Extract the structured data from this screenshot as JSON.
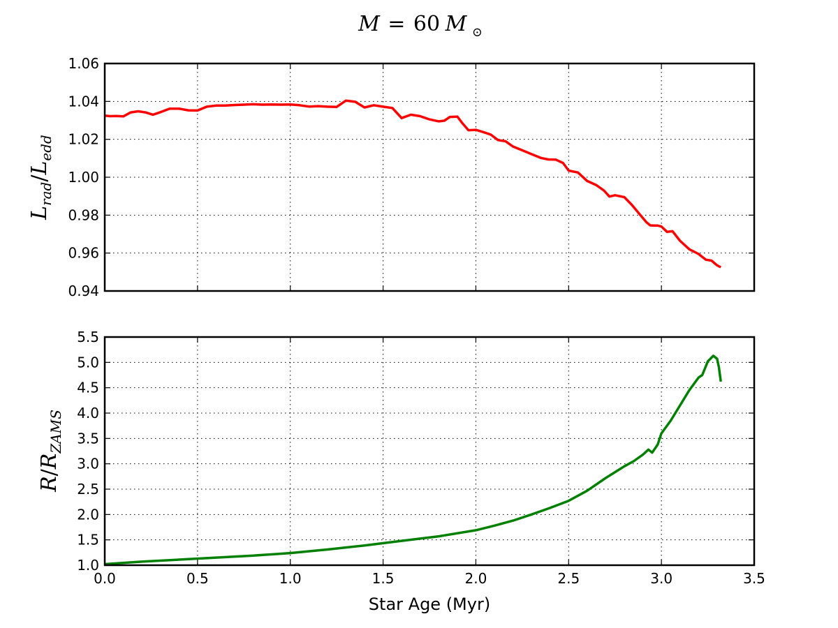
{
  "figure": {
    "title_symbol": "M",
    "title_equals": "=",
    "title_value": "60",
    "title_mass_symbol": "M",
    "title_subscript": "⊙"
  },
  "chart_data": [
    {
      "type": "line",
      "panel": "top",
      "ylabel": {
        "main": "L",
        "sub1": "rad",
        "slash": "/",
        "main2": "L",
        "sub2": "edd"
      },
      "xlabel": "",
      "xlim": [
        0.0,
        3.5
      ],
      "ylim": [
        0.94,
        1.06
      ],
      "xticks": [
        0.0,
        0.5,
        1.0,
        1.5,
        2.0,
        2.5,
        3.0,
        3.5
      ],
      "xtick_labels_visible": false,
      "yticks": [
        0.94,
        0.96,
        0.98,
        1.0,
        1.02,
        1.04,
        1.06
      ],
      "ytick_labels": [
        "0.94",
        "0.96",
        "0.98",
        "1.00",
        "1.02",
        "1.04",
        "1.06"
      ],
      "grid": true,
      "series": [
        {
          "color": "#ff0000",
          "x": [
            0.0,
            0.03,
            0.06,
            0.1,
            0.14,
            0.18,
            0.22,
            0.26,
            0.3,
            0.35,
            0.4,
            0.45,
            0.5,
            0.55,
            0.6,
            0.65,
            0.7,
            0.75,
            0.8,
            0.85,
            0.9,
            0.95,
            1.0,
            1.05,
            1.1,
            1.15,
            1.2,
            1.25,
            1.3,
            1.35,
            1.4,
            1.45,
            1.5,
            1.55,
            1.6,
            1.65,
            1.7,
            1.75,
            1.8,
            1.83,
            1.86,
            1.9,
            1.93,
            1.96,
            2.0,
            2.04,
            2.08,
            2.12,
            2.16,
            2.2,
            2.25,
            2.3,
            2.35,
            2.39,
            2.43,
            2.47,
            2.5,
            2.55,
            2.6,
            2.65,
            2.69,
            2.72,
            2.75,
            2.8,
            2.84,
            2.88,
            2.92,
            2.94,
            2.96,
            2.98,
            3.0,
            3.03,
            3.06,
            3.1,
            3.15,
            3.2,
            3.24,
            3.27,
            3.3,
            3.32
          ],
          "values": [
            1.0325,
            1.0322,
            1.0323,
            1.0321,
            1.0342,
            1.0348,
            1.0342,
            1.033,
            1.0343,
            1.0362,
            1.0362,
            1.0353,
            1.0352,
            1.0372,
            1.0378,
            1.0378,
            1.0381,
            1.0383,
            1.0385,
            1.0383,
            1.0384,
            1.0383,
            1.0384,
            1.038,
            1.0373,
            1.0375,
            1.0372,
            1.0371,
            1.0404,
            1.0398,
            1.0368,
            1.038,
            1.0372,
            1.0365,
            1.0312,
            1.033,
            1.0322,
            1.0305,
            1.0295,
            1.0298,
            1.0318,
            1.032,
            1.0282,
            1.0248,
            1.025,
            1.0238,
            1.0225,
            1.0196,
            1.019,
            1.0162,
            1.0142,
            1.0122,
            1.0102,
            1.0094,
            1.0093,
            1.0075,
            1.0035,
            1.0025,
            0.998,
            0.9958,
            0.993,
            0.9898,
            0.9905,
            0.9895,
            0.9855,
            0.9808,
            0.9762,
            0.9746,
            0.9745,
            0.9745,
            0.974,
            0.9712,
            0.9715,
            0.9665,
            0.962,
            0.9595,
            0.9565,
            0.956,
            0.9535,
            0.9525
          ]
        }
      ]
    },
    {
      "type": "line",
      "panel": "bottom",
      "ylabel": {
        "main": "R",
        "slash": "/",
        "main2": "R",
        "sub2": "ZAMS"
      },
      "xlabel": "Star Age (Myr)",
      "xlim": [
        0.0,
        3.5
      ],
      "ylim": [
        1.0,
        5.5
      ],
      "xticks": [
        0.0,
        0.5,
        1.0,
        1.5,
        2.0,
        2.5,
        3.0,
        3.5
      ],
      "xtick_labels": [
        "0.0",
        "0.5",
        "1.0",
        "1.5",
        "2.0",
        "2.5",
        "3.0",
        "3.5"
      ],
      "yticks": [
        1.0,
        1.5,
        2.0,
        2.5,
        3.0,
        3.5,
        4.0,
        4.5,
        5.0,
        5.5
      ],
      "ytick_labels": [
        "1.0",
        "1.5",
        "2.0",
        "2.5",
        "3.0",
        "3.5",
        "4.0",
        "4.5",
        "5.0",
        "5.5"
      ],
      "grid": true,
      "series": [
        {
          "color": "#008000",
          "x": [
            0.0,
            0.2,
            0.4,
            0.6,
            0.8,
            1.0,
            1.2,
            1.4,
            1.6,
            1.8,
            2.0,
            2.1,
            2.2,
            2.3,
            2.4,
            2.5,
            2.6,
            2.7,
            2.8,
            2.85,
            2.9,
            2.93,
            2.95,
            2.98,
            3.0,
            3.05,
            3.1,
            3.15,
            3.2,
            3.22,
            3.25,
            3.28,
            3.3,
            3.31,
            3.32
          ],
          "values": [
            1.02,
            1.07,
            1.11,
            1.15,
            1.19,
            1.24,
            1.31,
            1.39,
            1.48,
            1.57,
            1.69,
            1.78,
            1.88,
            2.0,
            2.13,
            2.27,
            2.47,
            2.72,
            2.95,
            3.05,
            3.18,
            3.28,
            3.22,
            3.38,
            3.6,
            3.85,
            4.15,
            4.45,
            4.7,
            4.75,
            5.02,
            5.13,
            5.07,
            4.9,
            4.62
          ]
        }
      ]
    }
  ]
}
